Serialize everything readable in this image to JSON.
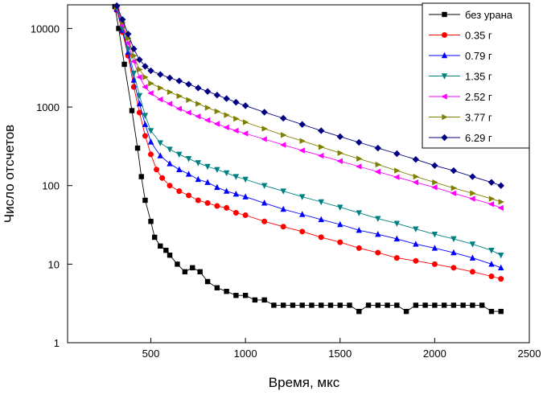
{
  "chart_data": {
    "type": "scatter",
    "xlabel": "Время, мкс",
    "ylabel": "Число отсчетов",
    "xlim": [
      60,
      2500
    ],
    "ylim": [
      1,
      20000
    ],
    "yscale": "log",
    "x_ticks": [
      500,
      1000,
      1500,
      2000,
      2500
    ],
    "x_tick_labels": [
      "500",
      "1000",
      "1500",
      "2000",
      "2500"
    ],
    "y_ticks": [
      1,
      10,
      100,
      1000,
      10000
    ],
    "y_tick_labels": [
      "1",
      "10",
      "100",
      "1000",
      "10000"
    ],
    "legend_position": "top-right",
    "grid": false,
    "series": [
      {
        "name": "без урана",
        "color": "#000000",
        "marker": "square",
        "x": [
          310,
          330,
          360,
          400,
          430,
          450,
          470,
          500,
          520,
          550,
          580,
          600,
          640,
          680,
          720,
          760,
          800,
          850,
          900,
          950,
          1000,
          1050,
          1100,
          1150,
          1200,
          1250,
          1300,
          1350,
          1400,
          1450,
          1500,
          1550,
          1600,
          1650,
          1700,
          1750,
          1800,
          1850,
          1900,
          1950,
          2000,
          2050,
          2100,
          2150,
          2200,
          2250,
          2300,
          2350
        ],
        "y": [
          19000,
          10000,
          3500,
          900,
          300,
          130,
          65,
          35,
          22,
          17,
          15,
          13,
          10,
          8,
          9,
          8,
          6,
          5,
          4.5,
          4,
          4,
          3.5,
          3.5,
          3,
          3,
          3,
          3,
          3,
          3,
          3,
          3,
          3,
          2.5,
          3,
          3,
          3,
          3,
          2.5,
          3,
          3,
          3,
          3,
          3,
          3,
          3,
          3,
          2.5,
          2.5
        ]
      },
      {
        "name": "0.35 г",
        "color": "#ff0000",
        "marker": "circle",
        "x": [
          320,
          350,
          380,
          410,
          440,
          470,
          500,
          530,
          560,
          600,
          650,
          700,
          750,
          800,
          850,
          900,
          950,
          1000,
          1100,
          1200,
          1300,
          1400,
          1500,
          1600,
          1700,
          1800,
          1900,
          2000,
          2100,
          2200,
          2300,
          2350
        ],
        "y": [
          17000,
          9000,
          4500,
          1800,
          850,
          430,
          250,
          160,
          125,
          100,
          85,
          75,
          65,
          60,
          55,
          52,
          45,
          42,
          35,
          30,
          26,
          22,
          19,
          16,
          14,
          12,
          11,
          10,
          9,
          8,
          7,
          6.5
        ]
      },
      {
        "name": "0.79 г",
        "color": "#0000ff",
        "marker": "triangle-up",
        "x": [
          320,
          350,
          380,
          410,
          440,
          470,
          500,
          550,
          600,
          650,
          700,
          750,
          800,
          850,
          900,
          950,
          1000,
          1100,
          1200,
          1300,
          1400,
          1500,
          1600,
          1700,
          1800,
          1900,
          2000,
          2100,
          2200,
          2300,
          2350
        ],
        "y": [
          17500,
          9500,
          5000,
          2200,
          1100,
          600,
          360,
          240,
          190,
          160,
          140,
          120,
          110,
          95,
          85,
          78,
          72,
          60,
          50,
          43,
          37,
          32,
          27,
          24,
          21,
          18,
          16,
          14,
          12,
          10,
          9
        ]
      },
      {
        "name": "1.35 г",
        "color": "#008080",
        "marker": "triangle-down",
        "x": [
          320,
          350,
          380,
          410,
          440,
          470,
          500,
          550,
          600,
          650,
          700,
          750,
          800,
          850,
          900,
          950,
          1000,
          1100,
          1200,
          1300,
          1400,
          1500,
          1600,
          1700,
          1800,
          1900,
          2000,
          2100,
          2200,
          2300,
          2350
        ],
        "y": [
          18000,
          10000,
          5500,
          2700,
          1400,
          780,
          500,
          350,
          290,
          250,
          220,
          195,
          175,
          160,
          145,
          130,
          120,
          100,
          85,
          72,
          62,
          53,
          45,
          38,
          33,
          28,
          24,
          21,
          18,
          15,
          13
        ]
      },
      {
        "name": "2.52 г",
        "color": "#ff00ff",
        "marker": "triangle-left",
        "x": [
          320,
          350,
          380,
          410,
          440,
          470,
          500,
          550,
          600,
          650,
          700,
          750,
          800,
          850,
          900,
          950,
          1000,
          1100,
          1200,
          1300,
          1400,
          1500,
          1600,
          1700,
          1800,
          1900,
          2000,
          2100,
          2200,
          2300,
          2350
        ],
        "y": [
          18500,
          11000,
          6500,
          3800,
          2400,
          1800,
          1500,
          1250,
          1100,
          950,
          850,
          760,
          680,
          610,
          550,
          500,
          460,
          390,
          330,
          280,
          240,
          205,
          175,
          150,
          128,
          110,
          95,
          80,
          68,
          58,
          52
        ]
      },
      {
        "name": "3.77 г",
        "color": "#808000",
        "marker": "triangle-right",
        "x": [
          320,
          350,
          380,
          410,
          440,
          470,
          500,
          550,
          600,
          650,
          700,
          750,
          800,
          850,
          900,
          950,
          1000,
          1100,
          1200,
          1300,
          1400,
          1500,
          1600,
          1700,
          1800,
          1900,
          2000,
          2100,
          2200,
          2300,
          2350
        ],
        "y": [
          19000,
          12000,
          7500,
          4500,
          3000,
          2400,
          2000,
          1750,
          1550,
          1380,
          1230,
          1100,
          980,
          880,
          790,
          710,
          640,
          530,
          440,
          370,
          310,
          260,
          220,
          185,
          155,
          130,
          110,
          93,
          80,
          68,
          62
        ]
      },
      {
        "name": "6.29 г",
        "color": "#000080",
        "marker": "diamond",
        "x": [
          320,
          350,
          380,
          410,
          440,
          470,
          500,
          550,
          600,
          650,
          700,
          750,
          800,
          850,
          900,
          950,
          1000,
          1100,
          1200,
          1300,
          1400,
          1500,
          1600,
          1700,
          1800,
          1900,
          2000,
          2100,
          2200,
          2300,
          2350
        ],
        "y": [
          19500,
          13000,
          8500,
          5500,
          4000,
          3300,
          2900,
          2600,
          2350,
          2150,
          1950,
          1750,
          1580,
          1420,
          1280,
          1150,
          1040,
          860,
          720,
          600,
          500,
          420,
          355,
          300,
          255,
          215,
          180,
          155,
          130,
          110,
          100
        ]
      }
    ]
  }
}
